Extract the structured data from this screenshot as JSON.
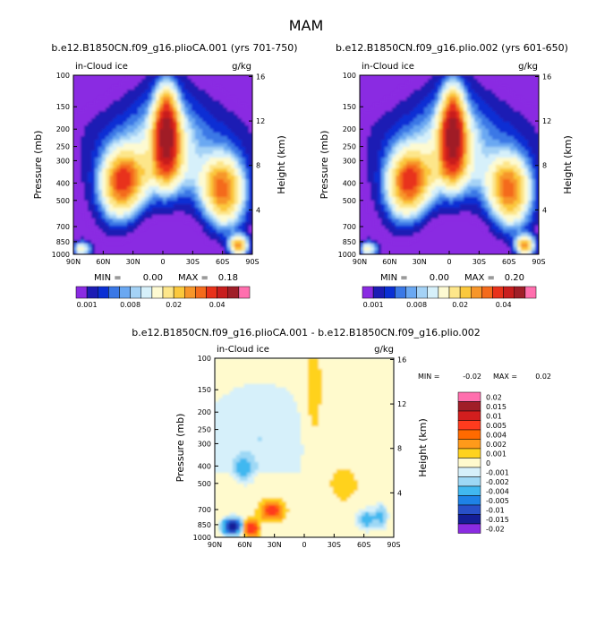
{
  "page_title": "MAM",
  "chart_data": [
    {
      "type": "heatmap",
      "title": "b.e12.B1850CN.f09_g16.plioCA.001 (yrs 701-750)",
      "left_label": "in-Cloud ice",
      "units_label": "g/kg",
      "ylabel": "Pressure (mb)",
      "y2label": "Height (km)",
      "x_ticks": [
        "90N",
        "60N",
        "30N",
        "0",
        "30S",
        "60S",
        "90S"
      ],
      "y_ticks": [
        "100",
        "150",
        "200",
        "250",
        "300",
        "400",
        "500",
        "700",
        "850",
        "1000"
      ],
      "y2_ticks": [
        "16",
        "12",
        "8",
        "4"
      ],
      "min_label": "MIN =",
      "min_value": "0.00",
      "max_label": "MAX =",
      "max_value": "0.18",
      "colorbar_labels": [
        "0.001",
        "0.008",
        "0.02",
        "0.04"
      ],
      "levels": [
        0.001,
        0.002,
        0.004,
        0.006,
        0.008,
        0.01,
        0.012,
        0.015,
        0.02,
        0.025,
        0.03,
        0.035,
        0.04,
        0.05,
        0.06,
        0.08
      ]
    },
    {
      "type": "heatmap",
      "title": "b.e12.B1850CN.f09_g16.plio.002 (yrs 601-650)",
      "left_label": "in-Cloud ice",
      "units_label": "g/kg",
      "ylabel": "Pressure (mb)",
      "y2label": "Height (km)",
      "x_ticks": [
        "90N",
        "60N",
        "30N",
        "0",
        "30S",
        "60S",
        "90S"
      ],
      "y_ticks": [
        "100",
        "150",
        "200",
        "250",
        "300",
        "400",
        "500",
        "700",
        "850",
        "1000"
      ],
      "y2_ticks": [
        "16",
        "12",
        "8",
        "4"
      ],
      "min_label": "MIN =",
      "min_value": "0.00",
      "max_label": "MAX =",
      "max_value": "0.20",
      "colorbar_labels": [
        "0.001",
        "0.008",
        "0.02",
        "0.04"
      ],
      "levels": [
        0.001,
        0.002,
        0.004,
        0.006,
        0.008,
        0.01,
        0.012,
        0.015,
        0.02,
        0.025,
        0.03,
        0.035,
        0.04,
        0.05,
        0.06,
        0.08
      ]
    },
    {
      "type": "heatmap",
      "title": "b.e12.B1850CN.f09_g16.plioCA.001 - b.e12.B1850CN.f09_g16.plio.002",
      "left_label": "in-Cloud ice",
      "units_label": "g/kg",
      "ylabel": "Pressure (mb)",
      "y2label": "Height (km)",
      "x_ticks": [
        "90N",
        "60N",
        "30N",
        "0",
        "30S",
        "60S",
        "90S"
      ],
      "y_ticks": [
        "100",
        "150",
        "200",
        "250",
        "300",
        "400",
        "500",
        "700",
        "850",
        "1000"
      ],
      "y2_ticks": [
        "16",
        "12",
        "8",
        "4"
      ],
      "min_label": "MIN =",
      "min_value": "-0.02",
      "max_label": "MAX =",
      "max_value": "0.02",
      "legend_labels": [
        "0.02",
        "0.015",
        "0.01",
        "0.005",
        "0.004",
        "0.002",
        "0.001",
        "0",
        "-0.001",
        "-0.002",
        "-0.004",
        "-0.005",
        "-0.01",
        "-0.015",
        "-0.02"
      ]
    }
  ],
  "colors": {
    "seq": [
      "#8a2be2",
      "#1c1cb4",
      "#0a2fd4",
      "#3a78e6",
      "#6aa8f2",
      "#a4d2f6",
      "#d6f0fa",
      "#fdfad2",
      "#fde68a",
      "#fbc83c",
      "#f7962a",
      "#f46b1c",
      "#e8321a",
      "#c81e1e",
      "#a01e28",
      "#ff6fae"
    ],
    "diff": [
      "#ff6fae",
      "#a01e28",
      "#d21e1e",
      "#ff3b1e",
      "#ff6a00",
      "#ff9a1a",
      "#ffd21e",
      "#fffacd",
      "#d6f0fa",
      "#9ed8f5",
      "#41b8f0",
      "#1e82e6",
      "#2850c8",
      "#141e96",
      "#8a2be2"
    ]
  }
}
